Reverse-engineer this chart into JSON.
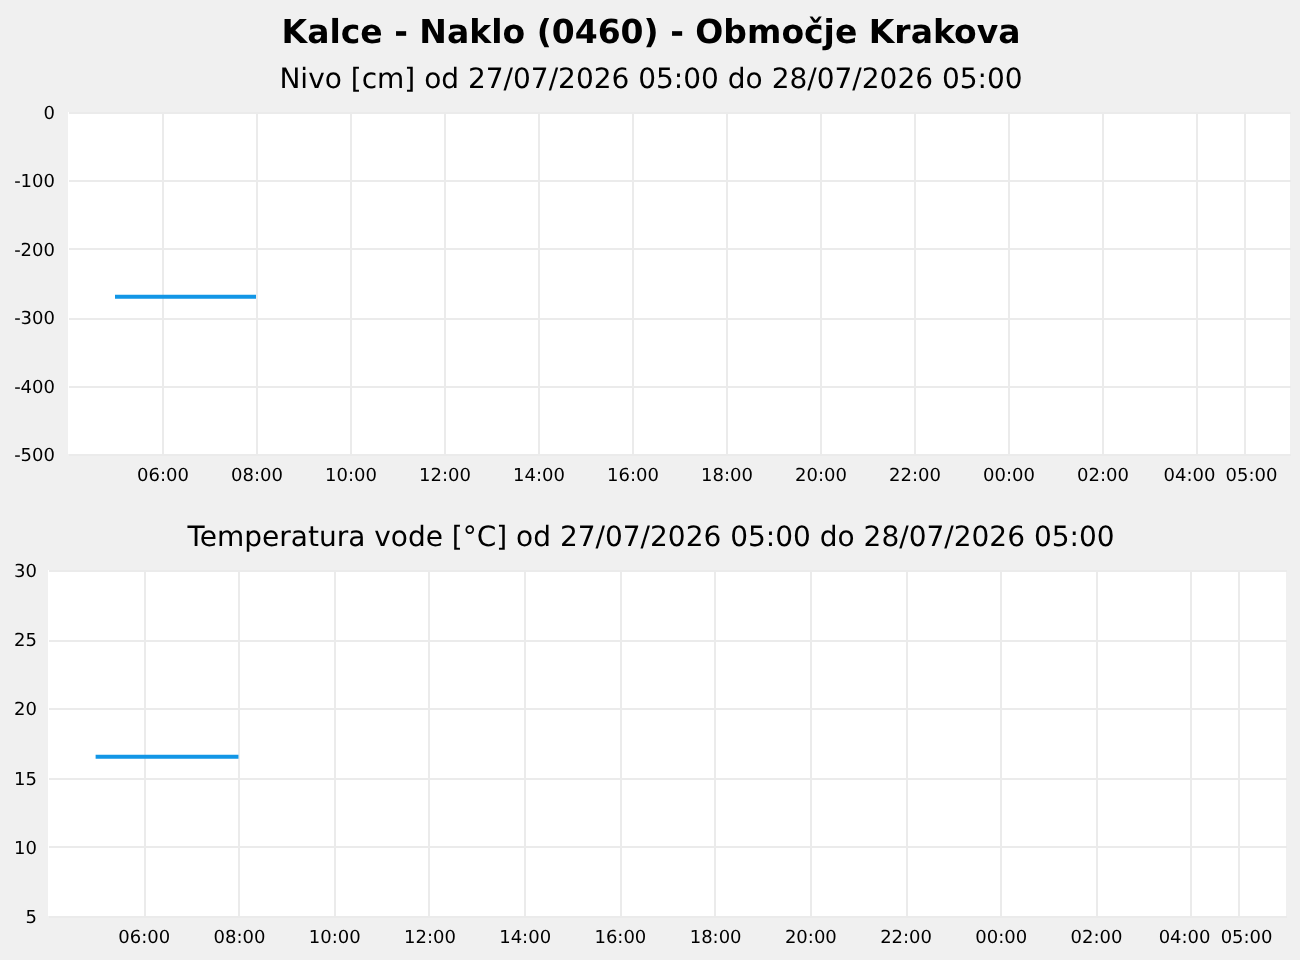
{
  "chart_data": [
    {
      "type": "line",
      "title": "Kalce - Naklo (0460) - Območje Krakova",
      "subtitle": "Nivo [cm] od 27/07/2026 05:00 do 28/07/2026 05:00",
      "x": [
        "2026-07-27T05:00",
        "2026-07-27T06:00",
        "2026-07-27T07:00",
        "2026-07-27T08:00"
      ],
      "values": [
        -270,
        -270,
        -270,
        -270
      ],
      "color": "#1296e6",
      "xlim": [
        "2026-07-27T04:00",
        "2026-07-28T06:00"
      ],
      "xticks": [
        {
          "value": "2026-07-27T06:00",
          "label": "06:00"
        },
        {
          "value": "2026-07-27T08:00",
          "label": "08:00"
        },
        {
          "value": "2026-07-27T10:00",
          "label": "10:00"
        },
        {
          "value": "2026-07-27T12:00",
          "label": "12:00"
        },
        {
          "value": "2026-07-27T14:00",
          "label": "14:00"
        },
        {
          "value": "2026-07-27T16:00",
          "label": "16:00"
        },
        {
          "value": "2026-07-27T18:00",
          "label": "18:00"
        },
        {
          "value": "2026-07-27T20:00",
          "label": "20:00"
        },
        {
          "value": "2026-07-27T22:00",
          "label": "22:00"
        },
        {
          "value": "2026-07-28T00:00",
          "label": "00:00"
        },
        {
          "value": "2026-07-28T02:00",
          "label": "02:00"
        },
        {
          "value": "2026-07-28T04:00",
          "label": "04:00"
        },
        {
          "value": "2026-07-28T05:00",
          "label": "05:00"
        }
      ],
      "ylim": [
        -500,
        0
      ],
      "yticks": [
        -500,
        -400,
        -300,
        -200,
        -100,
        0
      ],
      "grid": true
    },
    {
      "type": "line",
      "title": "Temperatura vode [°C] od 27/07/2026 05:00 do 28/07/2026 05:00",
      "x": [
        "2026-07-27T05:00",
        "2026-07-27T06:00",
        "2026-07-27T07:00",
        "2026-07-27T08:00"
      ],
      "values": [
        16.5,
        16.5,
        16.5,
        16.5
      ],
      "color": "#1296e6",
      "xlim": [
        "2026-07-27T04:00",
        "2026-07-28T06:00"
      ],
      "xticks": [
        {
          "value": "2026-07-27T06:00",
          "label": "06:00"
        },
        {
          "value": "2026-07-27T08:00",
          "label": "08:00"
        },
        {
          "value": "2026-07-27T10:00",
          "label": "10:00"
        },
        {
          "value": "2026-07-27T12:00",
          "label": "12:00"
        },
        {
          "value": "2026-07-27T14:00",
          "label": "14:00"
        },
        {
          "value": "2026-07-27T16:00",
          "label": "16:00"
        },
        {
          "value": "2026-07-27T18:00",
          "label": "18:00"
        },
        {
          "value": "2026-07-27T20:00",
          "label": "20:00"
        },
        {
          "value": "2026-07-27T22:00",
          "label": "22:00"
        },
        {
          "value": "2026-07-28T00:00",
          "label": "00:00"
        },
        {
          "value": "2026-07-28T02:00",
          "label": "02:00"
        },
        {
          "value": "2026-07-28T04:00",
          "label": "04:00"
        },
        {
          "value": "2026-07-28T05:00",
          "label": "05:00"
        }
      ],
      "ylim": [
        5,
        30
      ],
      "yticks": [
        5,
        10,
        15,
        20,
        25,
        30
      ],
      "grid": true
    }
  ]
}
